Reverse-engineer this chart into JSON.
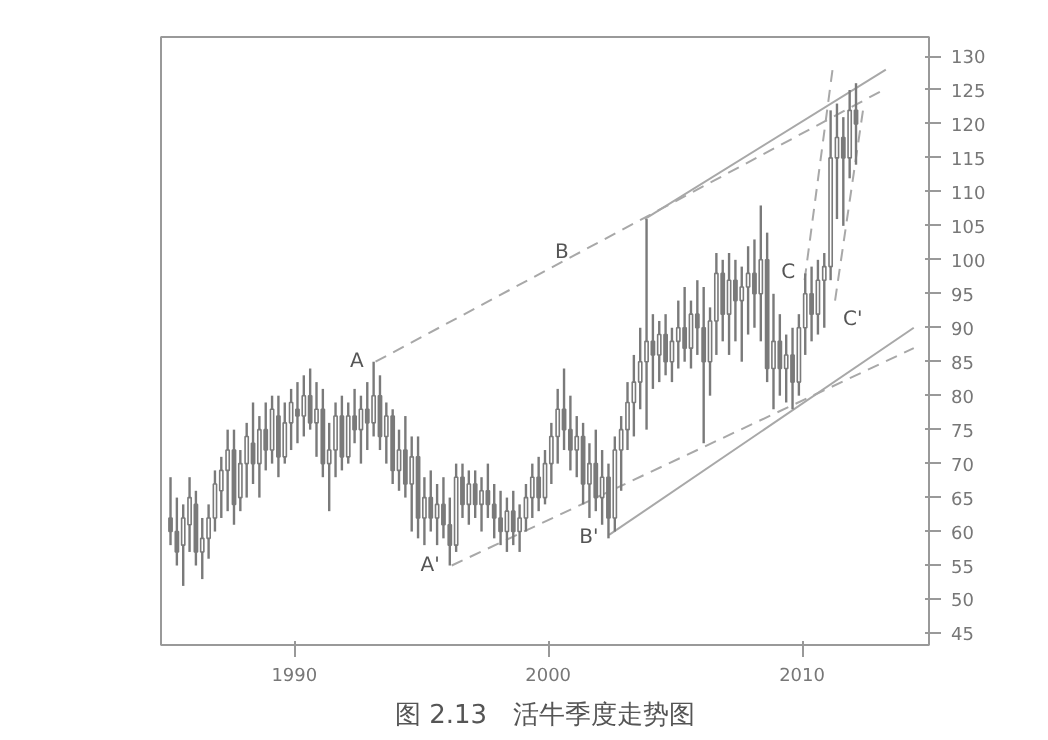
{
  "chart_data": {
    "type": "candlestick",
    "title": "图 2.13　活牛季度走势图",
    "color": "#7a7a7a",
    "x": [
      1985.125,
      1985.375,
      1985.625,
      1985.875,
      1986.125,
      1986.375,
      1986.625,
      1986.875,
      1987.125,
      1987.375,
      1987.625,
      1987.875,
      1988.125,
      1988.375,
      1988.625,
      1988.875,
      1989.125,
      1989.375,
      1989.625,
      1989.875,
      1990.125,
      1990.375,
      1990.625,
      1990.875,
      1991.125,
      1991.375,
      1991.625,
      1991.875,
      1992.125,
      1992.375,
      1992.625,
      1992.875,
      1993.125,
      1993.375,
      1993.625,
      1993.875,
      1994.125,
      1994.375,
      1994.625,
      1994.875,
      1995.125,
      1995.375,
      1995.625,
      1995.875,
      1996.125,
      1996.375,
      1996.625,
      1996.875,
      1997.125,
      1997.375,
      1997.625,
      1997.875,
      1998.125,
      1998.375,
      1998.625,
      1998.875,
      1999.125,
      1999.375,
      1999.625,
      1999.875,
      2000.125,
      2000.375,
      2000.625,
      2000.875,
      2001.125,
      2001.375,
      2001.625,
      2001.875,
      2002.125,
      2002.375,
      2002.625,
      2002.875,
      2003.125,
      2003.375,
      2003.625,
      2003.875,
      2004.125,
      2004.375,
      2004.625,
      2004.875,
      2005.125,
      2005.375,
      2005.625,
      2005.875,
      2006.125,
      2006.375,
      2006.625,
      2006.875,
      2007.125,
      2007.375,
      2007.625,
      2007.875,
      2008.125,
      2008.375,
      2008.625,
      2008.875,
      2009.125,
      2009.375,
      2009.625,
      2009.875,
      2010.125,
      2010.375,
      2010.625,
      2010.875,
      2011.125,
      2011.375,
      2011.625,
      2011.875,
      2012.125
    ],
    "ohlc": [
      [
        62,
        68,
        58,
        60
      ],
      [
        60,
        65,
        55,
        57
      ],
      [
        58,
        64,
        52,
        62
      ],
      [
        61,
        68,
        57,
        65
      ],
      [
        64,
        66,
        55,
        57
      ],
      [
        57,
        62,
        53,
        59
      ],
      [
        59,
        64,
        56,
        62
      ],
      [
        62,
        69,
        60,
        67
      ],
      [
        66,
        71,
        62,
        69
      ],
      [
        69,
        75,
        63,
        72
      ],
      [
        72,
        75,
        61,
        64
      ],
      [
        65,
        72,
        63,
        70
      ],
      [
        70,
        76,
        65,
        74
      ],
      [
        73,
        79,
        67,
        70
      ],
      [
        70,
        77,
        65,
        75
      ],
      [
        75,
        79,
        69,
        72
      ],
      [
        72,
        80,
        70,
        78
      ],
      [
        77,
        80,
        68,
        71
      ],
      [
        71,
        79,
        70,
        76
      ],
      [
        76,
        81,
        72,
        79
      ],
      [
        78,
        82,
        73,
        77
      ],
      [
        77,
        83,
        74,
        80
      ],
      [
        80,
        84,
        75,
        76
      ],
      [
        76,
        82,
        71,
        78
      ],
      [
        78,
        81,
        68,
        70
      ],
      [
        70,
        76,
        63,
        72
      ],
      [
        72,
        79,
        68,
        77
      ],
      [
        77,
        80,
        69,
        71
      ],
      [
        71,
        79,
        70,
        77
      ],
      [
        77,
        81,
        73,
        75
      ],
      [
        75,
        80,
        70,
        78
      ],
      [
        78,
        82,
        72,
        76
      ],
      [
        76,
        85,
        74,
        80
      ],
      [
        80,
        83,
        72,
        74
      ],
      [
        74,
        79,
        70,
        77
      ],
      [
        77,
        78,
        67,
        69
      ],
      [
        69,
        75,
        66,
        72
      ],
      [
        72,
        77,
        65,
        67
      ],
      [
        67,
        74,
        60,
        71
      ],
      [
        71,
        74,
        59,
        62
      ],
      [
        62,
        68,
        58,
        65
      ],
      [
        65,
        69,
        60,
        62
      ],
      [
        62,
        67,
        58,
        64
      ],
      [
        64,
        68,
        59,
        61
      ],
      [
        61,
        65,
        55,
        58
      ],
      [
        58,
        70,
        57,
        68
      ],
      [
        68,
        70,
        62,
        64
      ],
      [
        64,
        69,
        61,
        67
      ],
      [
        67,
        69,
        62,
        64
      ],
      [
        64,
        68,
        60,
        66
      ],
      [
        66,
        70,
        62,
        64
      ],
      [
        64,
        67,
        59,
        62
      ],
      [
        62,
        66,
        58,
        60
      ],
      [
        60,
        65,
        57,
        63
      ],
      [
        63,
        66,
        58,
        60
      ],
      [
        60,
        64,
        57,
        62
      ],
      [
        62,
        67,
        60,
        65
      ],
      [
        65,
        70,
        62,
        68
      ],
      [
        68,
        71,
        63,
        65
      ],
      [
        65,
        72,
        64,
        70
      ],
      [
        70,
        76,
        67,
        74
      ],
      [
        74,
        81,
        70,
        78
      ],
      [
        78,
        84,
        72,
        75
      ],
      [
        75,
        80,
        69,
        72
      ],
      [
        72,
        77,
        68,
        74
      ],
      [
        74,
        76,
        64,
        67
      ],
      [
        67,
        73,
        62,
        70
      ],
      [
        70,
        75,
        63,
        65
      ],
      [
        65,
        72,
        61,
        68
      ],
      [
        68,
        70,
        59,
        62
      ],
      [
        62,
        74,
        60,
        72
      ],
      [
        72,
        77,
        66,
        75
      ],
      [
        75,
        82,
        72,
        79
      ],
      [
        79,
        86,
        74,
        82
      ],
      [
        82,
        90,
        78,
        85
      ],
      [
        85,
        106,
        75,
        88
      ],
      [
        88,
        92,
        81,
        86
      ],
      [
        86,
        91,
        82,
        89
      ],
      [
        89,
        92,
        83,
        85
      ],
      [
        85,
        90,
        82,
        88
      ],
      [
        88,
        94,
        84,
        90
      ],
      [
        90,
        96,
        85,
        87
      ],
      [
        87,
        94,
        84,
        92
      ],
      [
        92,
        97,
        86,
        90
      ],
      [
        90,
        96,
        73,
        85
      ],
      [
        85,
        93,
        80,
        91
      ],
      [
        91,
        101,
        86,
        98
      ],
      [
        98,
        100,
        88,
        92
      ],
      [
        92,
        101,
        86,
        97
      ],
      [
        97,
        100,
        88,
        94
      ],
      [
        94,
        99,
        85,
        96
      ],
      [
        96,
        102,
        89,
        98
      ],
      [
        98,
        103,
        90,
        95
      ],
      [
        95,
        108,
        88,
        100
      ],
      [
        100,
        104,
        82,
        84
      ],
      [
        84,
        95,
        78,
        88
      ],
      [
        88,
        92,
        80,
        84
      ],
      [
        84,
        89,
        79,
        86
      ],
      [
        86,
        90,
        78,
        82
      ],
      [
        82,
        92,
        80,
        90
      ],
      [
        90,
        98,
        86,
        95
      ],
      [
        95,
        99,
        88,
        92
      ],
      [
        92,
        100,
        89,
        97
      ],
      [
        97,
        101,
        90,
        99
      ],
      [
        99,
        122,
        97,
        115
      ],
      [
        115,
        123,
        106,
        118
      ],
      [
        118,
        121,
        105,
        115
      ],
      [
        115,
        125,
        112,
        122
      ],
      [
        122,
        126,
        114,
        120
      ]
    ],
    "series": [
      {
        "type": "line",
        "color": "#a8a8a8",
        "line_style": "dashed",
        "x": [
          1993.2,
          2013.2
        ],
        "values": [
          85,
          125
        ]
      },
      {
        "type": "line",
        "color": "#a8a8a8",
        "line_style": "solid",
        "x": [
          2003.8,
          2013.3
        ],
        "values": [
          106,
          128
        ]
      },
      {
        "type": "line",
        "color": "#a8a8a8",
        "line_style": "dashed",
        "x": [
          1996.2,
          2014.4
        ],
        "values": [
          55,
          87
        ]
      },
      {
        "type": "line",
        "color": "#a8a8a8",
        "line_style": "solid",
        "x": [
          2002.4,
          2014.4
        ],
        "values": [
          59.5,
          90
        ]
      },
      {
        "type": "line",
        "color": "#a8a8a8",
        "line_style": "dashed",
        "x": [
          2010.1,
          2011.2
        ],
        "values": [
          97,
          128
        ]
      },
      {
        "type": "line",
        "color": "#a8a8a8",
        "line_style": "dashed",
        "x": [
          2011.3,
          2012.4
        ],
        "values": [
          94,
          122
        ]
      }
    ],
    "annotations": [
      {
        "text": "A",
        "x": 1993.125,
        "y": 85
      },
      {
        "text": "A'",
        "x": 1996.125,
        "y": 55
      },
      {
        "text": "B",
        "x": 2001.2,
        "y": 101
      },
      {
        "text": "B'",
        "x": 2002.375,
        "y": 59
      },
      {
        "text": "C",
        "x": 2010.125,
        "y": 98
      },
      {
        "text": "C'",
        "x": 2011.3,
        "y": 94
      }
    ],
    "xlim": [
      1984.75,
      2015
    ],
    "ylim": [
      43.3,
      132.8
    ],
    "xticks": [
      1990,
      2000,
      2010
    ],
    "yticks": [
      45,
      50,
      55,
      60,
      65,
      70,
      75,
      80,
      85,
      90,
      95,
      100,
      105,
      110,
      115,
      120,
      125,
      130
    ],
    "grid": false
  }
}
